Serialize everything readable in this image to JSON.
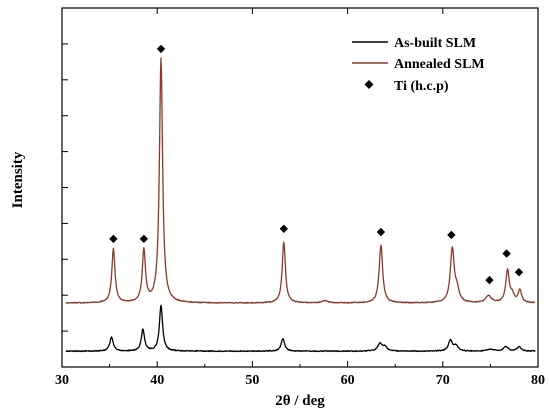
{
  "chart_data": {
    "type": "line",
    "title": "",
    "xlabel": "2θ / deg",
    "ylabel": "Intensity",
    "xlim": [
      30,
      80
    ],
    "ylim": [
      0,
      100
    ],
    "x_ticks": [
      30,
      40,
      50,
      60,
      70,
      80
    ],
    "y_tick_count": 11,
    "y_tick_labels_shown": false,
    "grid": false,
    "legend_placement": "top-right",
    "series": [
      {
        "name": "As-built SLM",
        "color": "#000000",
        "baseline": 4.4,
        "noise": 0.25,
        "peaks": [
          {
            "x": 35.2,
            "height": 3.8,
            "width": 0.22
          },
          {
            "x": 38.5,
            "height": 6.0,
            "width": 0.2
          },
          {
            "x": 40.4,
            "height": 12.8,
            "width": 0.2
          },
          {
            "x": 53.2,
            "height": 3.5,
            "width": 0.22
          },
          {
            "x": 63.4,
            "height": 2.0,
            "width": 0.28
          },
          {
            "x": 63.9,
            "height": 1.2,
            "width": 0.28
          },
          {
            "x": 70.8,
            "height": 3.0,
            "width": 0.25
          },
          {
            "x": 71.4,
            "height": 1.5,
            "width": 0.25
          },
          {
            "x": 76.6,
            "height": 1.3,
            "width": 0.28
          },
          {
            "x": 78.0,
            "height": 1.2,
            "width": 0.25
          },
          {
            "x": 75.0,
            "height": 0.5,
            "width": 0.4
          }
        ]
      },
      {
        "name": "Annealed SLM",
        "color": "#8b3a28",
        "baseline": 17.8,
        "noise": 0.25,
        "peaks": [
          {
            "x": 35.4,
            "height": 15.0,
            "width": 0.2
          },
          {
            "x": 38.6,
            "height": 14.5,
            "width": 0.2
          },
          {
            "x": 40.4,
            "height": 68.0,
            "width": 0.2
          },
          {
            "x": 53.3,
            "height": 17.0,
            "width": 0.2
          },
          {
            "x": 57.6,
            "height": 0.6,
            "width": 0.4
          },
          {
            "x": 63.5,
            "height": 16.0,
            "width": 0.22
          },
          {
            "x": 71.0,
            "height": 15.0,
            "width": 0.25
          },
          {
            "x": 71.5,
            "height": 3.0,
            "width": 0.25
          },
          {
            "x": 74.8,
            "height": 2.0,
            "width": 0.35
          },
          {
            "x": 76.8,
            "height": 9.0,
            "width": 0.22
          },
          {
            "x": 77.3,
            "height": 2.0,
            "width": 0.22
          },
          {
            "x": 78.1,
            "height": 3.5,
            "width": 0.22
          }
        ]
      }
    ],
    "markers": {
      "name": "Ti (h.c.p)",
      "symbol": "diamond",
      "color": "#000000",
      "points": [
        {
          "x": 35.4,
          "y": 35.7
        },
        {
          "x": 38.6,
          "y": 35.7
        },
        {
          "x": 40.4,
          "y": 88.6
        },
        {
          "x": 53.3,
          "y": 38.5
        },
        {
          "x": 63.5,
          "y": 37.6
        },
        {
          "x": 70.9,
          "y": 36.8
        },
        {
          "x": 74.9,
          "y": 24.2
        },
        {
          "x": 76.7,
          "y": 31.6
        },
        {
          "x": 78.0,
          "y": 26.4
        }
      ]
    }
  }
}
